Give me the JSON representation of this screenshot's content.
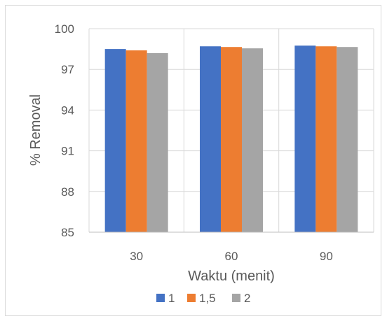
{
  "chart_data": {
    "type": "bar",
    "categories": [
      "30",
      "60",
      "90"
    ],
    "series": [
      {
        "name": "1",
        "values": [
          98.5,
          98.7,
          98.75
        ],
        "color": "#4472C4"
      },
      {
        "name": "1,5",
        "values": [
          98.4,
          98.65,
          98.7
        ],
        "color": "#ED7D31"
      },
      {
        "name": "2",
        "values": [
          98.2,
          98.55,
          98.65
        ],
        "color": "#A5A5A5"
      }
    ],
    "xlabel": "Waktu (menit)",
    "ylabel": "% Removal",
    "ylim": [
      85,
      100
    ],
    "yticks": [
      "85",
      "88",
      "91",
      "94",
      "97",
      "100"
    ],
    "grid": true,
    "legend_position": "bottom",
    "gridline_color": "#d9d9d9",
    "axis_color": "#bfbfbf"
  }
}
